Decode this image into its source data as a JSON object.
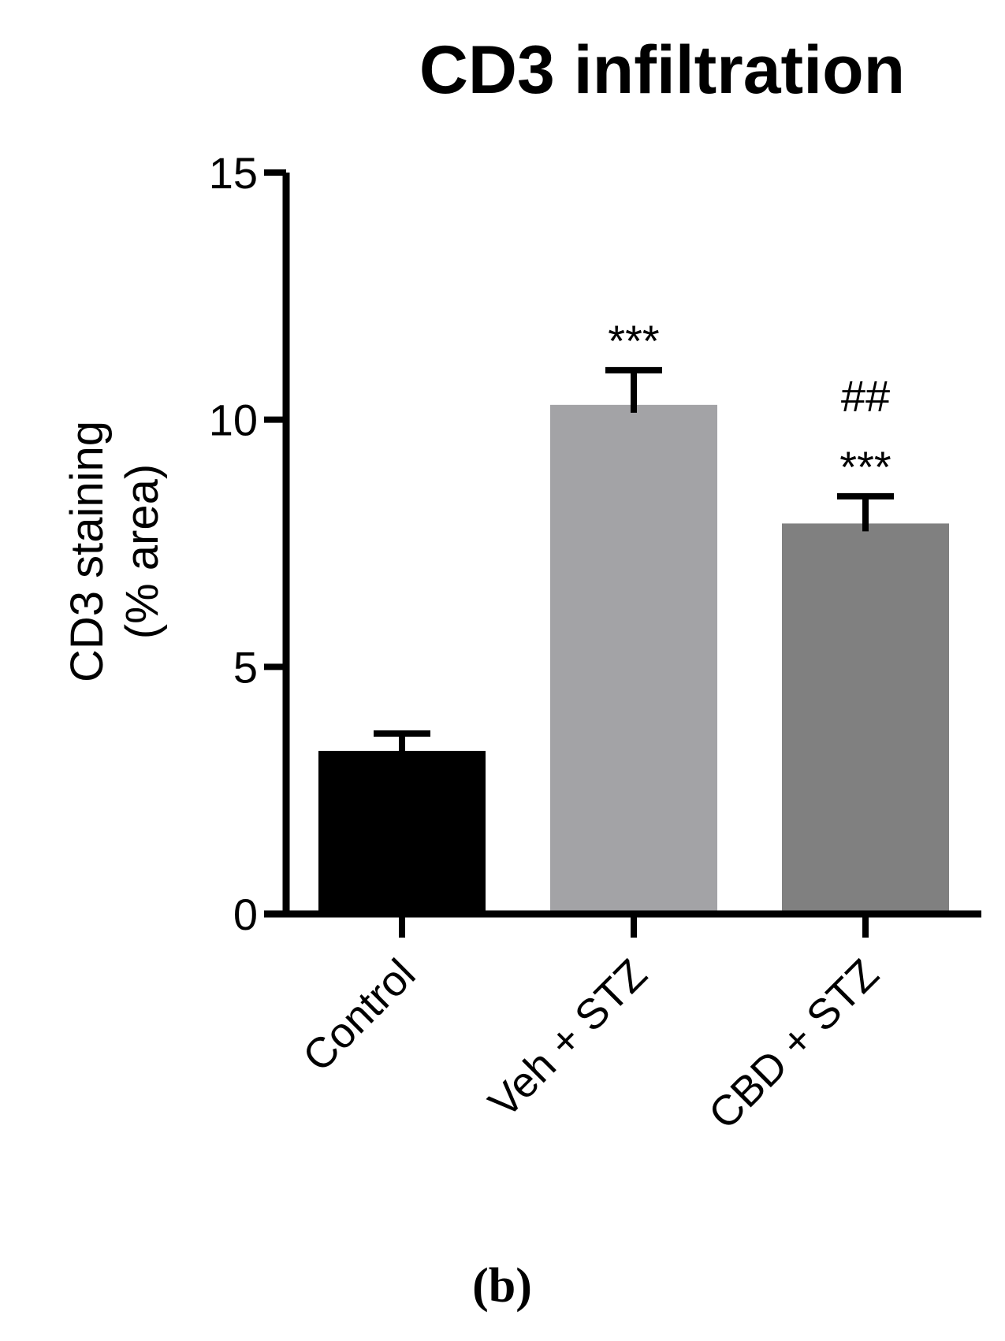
{
  "chart_data": {
    "type": "bar",
    "title": "CD3 infiltration",
    "ylabel_lines": [
      "CD3 staining",
      "(% area)"
    ],
    "xlabel": "",
    "ylim": [
      0,
      15
    ],
    "yticks": [
      0,
      5,
      10,
      15
    ],
    "categories": [
      "Control",
      "Veh + STZ",
      "CBD + STZ"
    ],
    "values": [
      3.3,
      10.3,
      7.9
    ],
    "errors": [
      0.35,
      0.7,
      0.55
    ],
    "bar_colors": [
      "#000000",
      "#a3a3a6",
      "#808080"
    ],
    "annotations": [
      [],
      [
        "***"
      ],
      [
        "***",
        "##"
      ]
    ],
    "grid": false,
    "legend": "none"
  },
  "panel_label": "(b)"
}
